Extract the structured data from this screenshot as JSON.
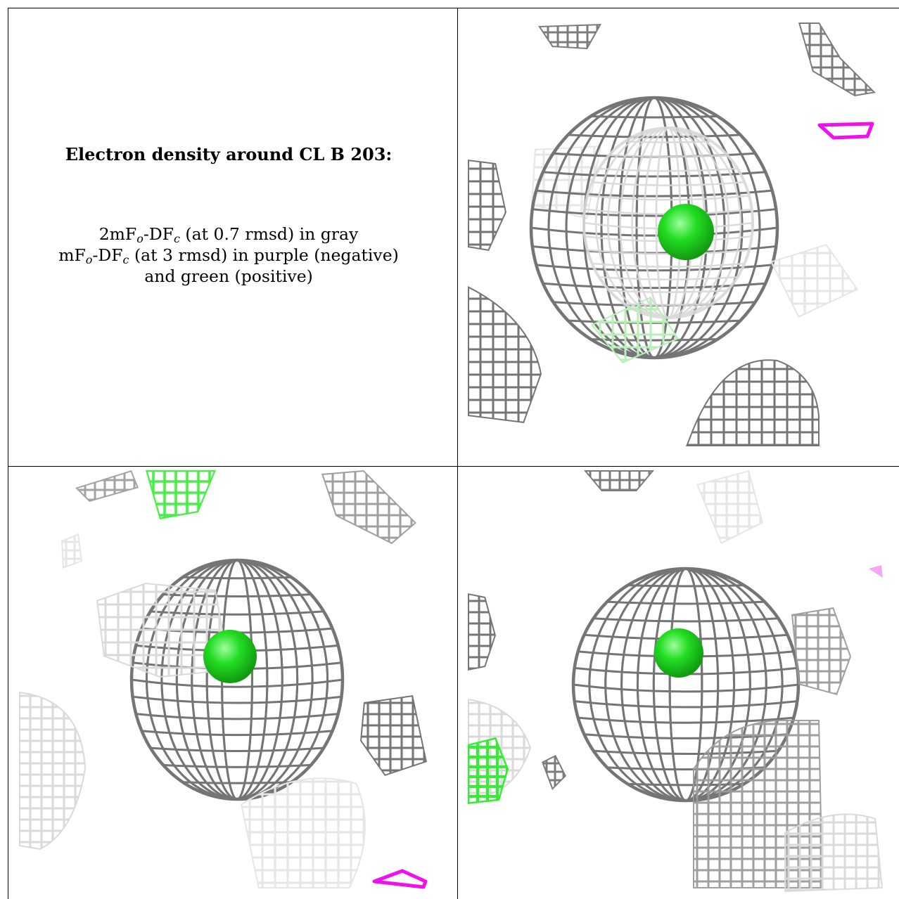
{
  "caption": {
    "title": "Electron density around CL B 203:",
    "line1": {
      "main": "2mF",
      "sub1": "o",
      "mid": "-DF",
      "sub2": "c",
      "tail": " (at 0.7 rmsd) in gray"
    },
    "line2": {
      "main": "mF",
      "sub1": "o",
      "mid": "-DF",
      "sub2": "c",
      "tail": " (at 3 rmsd) in purple (negative)"
    },
    "line3": "and green (positive)"
  },
  "colors": {
    "mesh_dark": "#6e6e6e",
    "mesh_mid": "#9a9a9a",
    "mesh_light": "#d8d8d8",
    "mesh_faint": "#e6e6e6",
    "chloride_sphere": "#22dd22",
    "positive_density": "#33ee33",
    "positive_density_faint": "#b8eeb8",
    "negative_density": "#ee11ee",
    "negative_density_faint": "#f4a8f4"
  },
  "panels": [
    {
      "name": "caption-panel"
    },
    {
      "name": "density-view-1",
      "icon": "electron-density-mesh"
    },
    {
      "name": "density-view-2",
      "icon": "electron-density-mesh"
    },
    {
      "name": "density-view-3",
      "icon": "electron-density-mesh"
    }
  ]
}
